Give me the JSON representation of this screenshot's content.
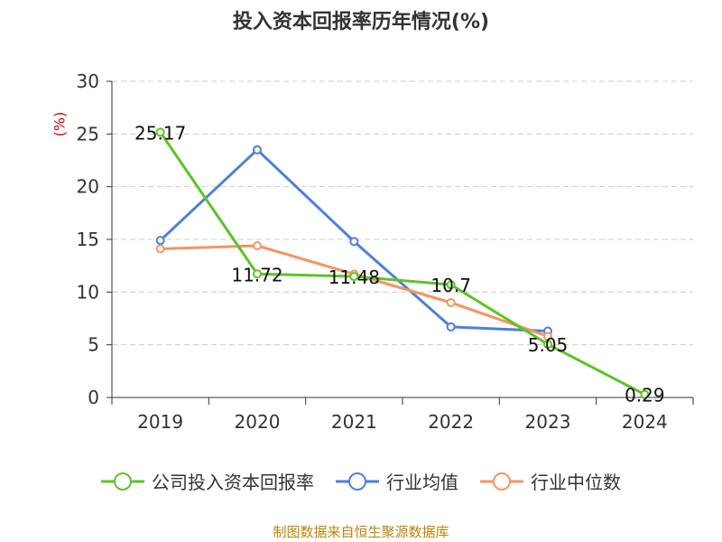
{
  "chart_data": {
    "type": "line",
    "title": "投入资本回报率历年情况(%)",
    "unit": "(%)",
    "categories": [
      "2019",
      "2020",
      "2021",
      "2022",
      "2023",
      "2024"
    ],
    "ylim": [
      0,
      30
    ],
    "yticks": [
      "0",
      "5",
      "10",
      "15",
      "20",
      "25",
      "30"
    ],
    "grid": true,
    "legend_position": "bottom",
    "series": [
      {
        "name": "公司投入资本回报率",
        "color": "#5cc424",
        "values": [
          25.17,
          11.72,
          11.48,
          10.7,
          5.05,
          0.29
        ],
        "labels": [
          "25.17",
          "11.72",
          "11.48",
          "10.7",
          "5.05",
          "0.29"
        ]
      },
      {
        "name": "行业均值",
        "color": "#4e7fdb",
        "values": [
          14.9,
          23.5,
          14.8,
          6.7,
          6.3,
          null
        ]
      },
      {
        "name": "行业中位数",
        "color": "#f59462",
        "values": [
          14.1,
          14.4,
          11.7,
          9.0,
          5.8,
          null
        ]
      }
    ]
  },
  "source": "制图数据来自恒生聚源数据库"
}
